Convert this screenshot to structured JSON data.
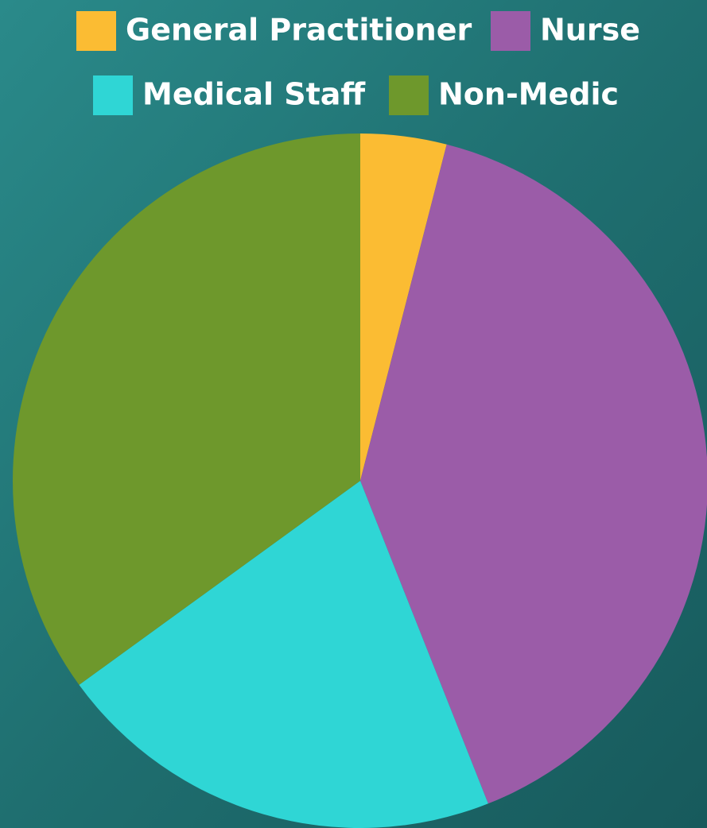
{
  "chart_data": {
    "type": "pie",
    "categories": [
      "General Practitioner",
      "Nurse",
      "Medical Staff",
      "Non-Medic"
    ],
    "values": [
      4,
      40,
      21,
      35
    ],
    "colors": [
      "#fbbc33",
      "#9b5ca8",
      "#2fd6d5",
      "#6e982c"
    ]
  }
}
